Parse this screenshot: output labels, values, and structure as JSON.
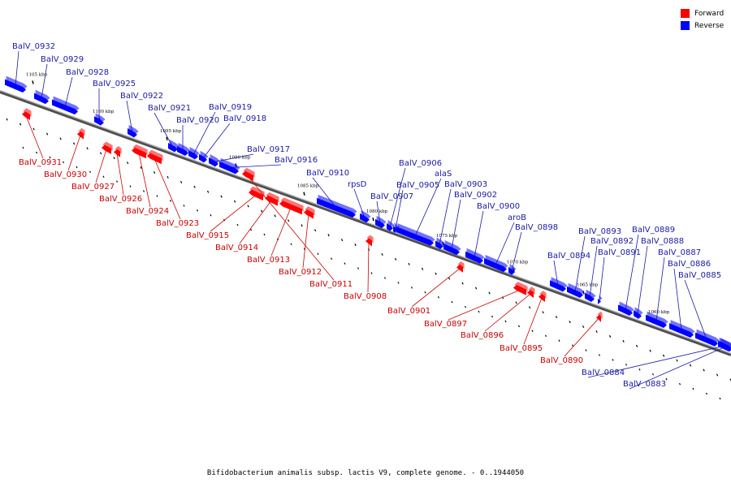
{
  "colors": {
    "forward": "#ff0000",
    "reverse": "#0000ff",
    "forward_label": "#cc0000",
    "reverse_label": "#1a1aa6",
    "axis": "#888888"
  },
  "legend": [
    {
      "label": "Forward",
      "color": "#ff0000"
    },
    {
      "label": "Reverse",
      "color": "#0000ff"
    }
  ],
  "caption": "Bifidobacterium animalis subsp. lactis V9, complete genome. - 0..1944050",
  "scale_marks": [
    "1105 kbp",
    "1100 kbp",
    "1095 kbp",
    "1090 kbp",
    "1085 kbp",
    "1080 kbp",
    "1075 kbp",
    "1070 kbp",
    "1065 kbp",
    "1060 kbp"
  ],
  "genes": [
    {
      "name": "BalV_0932",
      "strand": "reverse"
    },
    {
      "name": "BalV_0931",
      "strand": "forward"
    },
    {
      "name": "BalV_0930",
      "strand": "forward"
    },
    {
      "name": "BalV_0929",
      "strand": "reverse"
    },
    {
      "name": "BalV_0928",
      "strand": "reverse"
    },
    {
      "name": "BalV_0927",
      "strand": "forward"
    },
    {
      "name": "BalV_0926",
      "strand": "forward"
    },
    {
      "name": "BalV_0925",
      "strand": "reverse"
    },
    {
      "name": "BalV_0924",
      "strand": "forward"
    },
    {
      "name": "BalV_0923",
      "strand": "forward"
    },
    {
      "name": "BalV_0922",
      "strand": "reverse"
    },
    {
      "name": "BalV_0921",
      "strand": "reverse"
    },
    {
      "name": "BalV_0920",
      "strand": "reverse"
    },
    {
      "name": "BalV_0919",
      "strand": "reverse"
    },
    {
      "name": "BalV_0918",
      "strand": "reverse"
    },
    {
      "name": "BalV_0917",
      "strand": "reverse"
    },
    {
      "name": "BalV_0916",
      "strand": "reverse"
    },
    {
      "name": "BalV_0915",
      "strand": "forward"
    },
    {
      "name": "BalV_0914",
      "strand": "forward"
    },
    {
      "name": "BalV_0913",
      "strand": "forward"
    },
    {
      "name": "BalV_0912",
      "strand": "forward"
    },
    {
      "name": "BalV_0911",
      "strand": "forward"
    },
    {
      "name": "BalV_0910",
      "strand": "reverse"
    },
    {
      "name": "rpsD",
      "strand": "reverse"
    },
    {
      "name": "BalV_0908",
      "strand": "forward"
    },
    {
      "name": "BalV_0907",
      "strand": "reverse"
    },
    {
      "name": "BalV_0906",
      "strand": "reverse"
    },
    {
      "name": "BalV_0905",
      "strand": "reverse"
    },
    {
      "name": "alaS",
      "strand": "reverse"
    },
    {
      "name": "BalV_0903",
      "strand": "reverse"
    },
    {
      "name": "BalV_0902",
      "strand": "reverse"
    },
    {
      "name": "BalV_0901",
      "strand": "forward"
    },
    {
      "name": "BalV_0900",
      "strand": "reverse"
    },
    {
      "name": "aroB",
      "strand": "reverse"
    },
    {
      "name": "BalV_0898",
      "strand": "reverse"
    },
    {
      "name": "BalV_0897",
      "strand": "forward"
    },
    {
      "name": "BalV_0896",
      "strand": "forward"
    },
    {
      "name": "BalV_0895",
      "strand": "forward"
    },
    {
      "name": "BalV_0894",
      "strand": "reverse"
    },
    {
      "name": "BalV_0893",
      "strand": "reverse"
    },
    {
      "name": "BalV_0892",
      "strand": "reverse"
    },
    {
      "name": "BalV_0891",
      "strand": "reverse"
    },
    {
      "name": "BalV_0890",
      "strand": "forward"
    },
    {
      "name": "BalV_0889",
      "strand": "reverse"
    },
    {
      "name": "BalV_0888",
      "strand": "reverse"
    },
    {
      "name": "BalV_0887",
      "strand": "reverse"
    },
    {
      "name": "BalV_0886",
      "strand": "reverse"
    },
    {
      "name": "BalV_0885",
      "strand": "reverse"
    },
    {
      "name": "BalV_0884",
      "strand": "reverse"
    },
    {
      "name": "BalV_0883",
      "strand": "reverse"
    }
  ]
}
